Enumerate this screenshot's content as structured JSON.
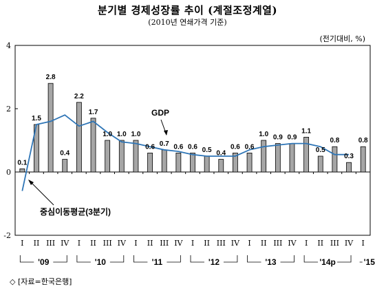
{
  "header": {
    "title": "분기별 경제성장률 추이 (계절조정계열)",
    "subtitle": "(2010년 연쇄가격 기준)",
    "unit": "(전기대비, %)"
  },
  "footer": {
    "source": "◇ [자료=한국은행]"
  },
  "chart_data": {
    "type": "bar",
    "title": "분기별 경제성장률 추이 (계절조정계열)",
    "subtitle": "(2010년 연쇄가격 기준)",
    "unit_label": "(전기대비, %)",
    "ylim": [
      -2,
      4
    ],
    "yticks": [
      -2,
      0,
      2,
      4
    ],
    "grid": false,
    "categories": [
      "I",
      "II",
      "III",
      "IV",
      "I",
      "II",
      "III",
      "IV",
      "I",
      "II",
      "III",
      "IV",
      "I",
      "II",
      "III",
      "IV",
      "I",
      "II",
      "III",
      "IV",
      "I",
      "II",
      "III",
      "IV",
      "I"
    ],
    "year_groups": [
      {
        "label": "'09",
        "start": 0,
        "end": 3
      },
      {
        "label": "'10",
        "start": 4,
        "end": 7
      },
      {
        "label": "'11",
        "start": 8,
        "end": 11
      },
      {
        "label": "'12",
        "start": 12,
        "end": 15
      },
      {
        "label": "'13",
        "start": 16,
        "end": 19
      },
      {
        "label": "'14p",
        "start": 20,
        "end": 23
      },
      {
        "label": "'15p",
        "start": 24,
        "end": 24
      }
    ],
    "series": [
      {
        "name": "GDP",
        "values": [
          0.1,
          1.5,
          2.8,
          0.4,
          2.2,
          1.7,
          1.0,
          1.0,
          1.0,
          0.6,
          0.7,
          0.6,
          0.6,
          0.5,
          0.4,
          0.6,
          0.6,
          1.0,
          0.9,
          0.9,
          1.1,
          0.5,
          0.8,
          0.3,
          0.8
        ],
        "labels": [
          "0.1",
          "1.5",
          "2.8",
          "0.4",
          "2.2",
          "1.7",
          "1.0",
          "1.0",
          "1.0",
          "0.6",
          "0.7",
          "0.6",
          "0.6",
          "0.5",
          "0.4",
          "0.6",
          "0.6",
          "1.0",
          "0.9",
          "0.9",
          "1.1",
          "0.5",
          "0.8",
          "0.3",
          "0.8"
        ],
        "color": "#a6a6a6"
      },
      {
        "name": "중심이동평균(3분기)",
        "type": "line",
        "values": [
          -0.6,
          1.5,
          1.6,
          1.8,
          1.45,
          1.6,
          1.25,
          0.95,
          0.9,
          0.8,
          0.7,
          0.65,
          0.55,
          0.5,
          0.5,
          0.5,
          0.7,
          0.8,
          0.85,
          0.9,
          0.9,
          0.8,
          0.55,
          0.55,
          null
        ],
        "color": "#2e75b6"
      }
    ],
    "annotations": [
      {
        "text": "GDP",
        "points_to": 10
      },
      {
        "text": "중심이동평균(3분기)",
        "points_to": 0
      }
    ]
  }
}
